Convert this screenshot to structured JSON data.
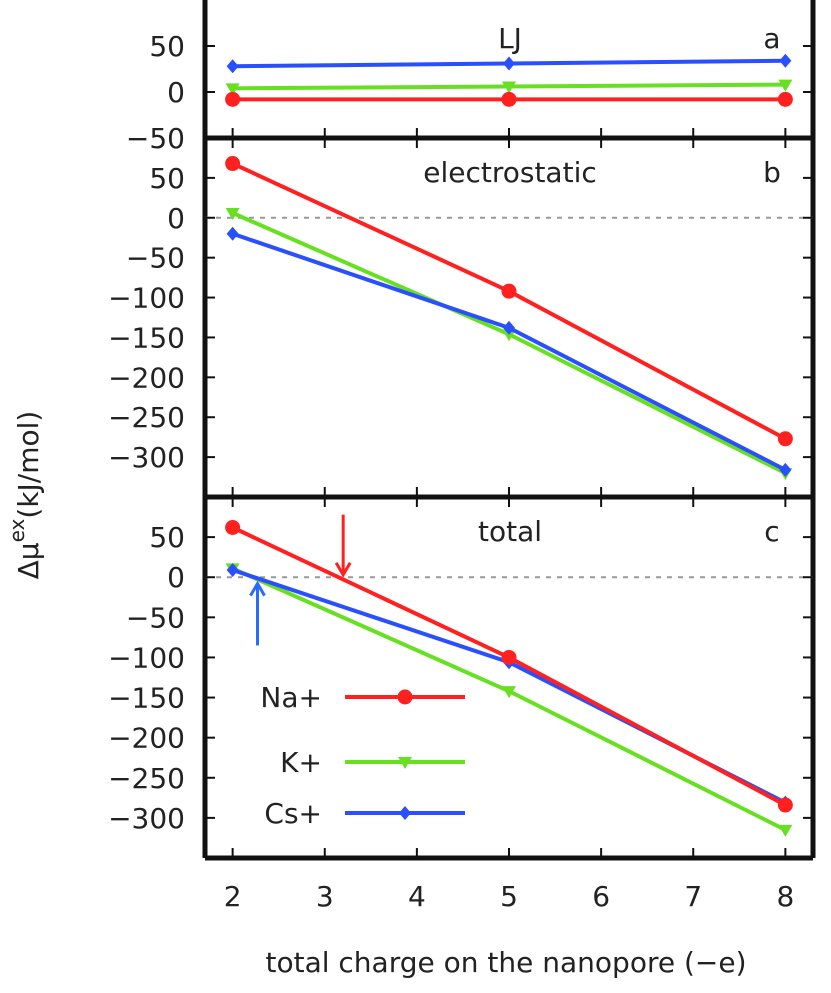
{
  "chart_data": [
    {
      "type": "line",
      "panel_id": "a",
      "title": "LJ",
      "ylim": [
        -50,
        100
      ],
      "yticks": [
        -50,
        0,
        50
      ],
      "ytick_labels": [
        "−50",
        "0",
        "50"
      ],
      "x": [
        2,
        5,
        8
      ],
      "series": [
        {
          "name": "Na+",
          "values": [
            -8,
            -8,
            -8
          ]
        },
        {
          "name": "K+",
          "values": [
            4,
            6,
            8
          ]
        },
        {
          "name": "Cs+",
          "values": [
            28,
            31,
            34
          ]
        }
      ],
      "zero_line": false
    },
    {
      "type": "line",
      "panel_id": "b",
      "title": "electrostatic",
      "ylim": [
        -350,
        100
      ],
      "yticks": [
        -300,
        -250,
        -200,
        -150,
        -100,
        -50,
        0,
        50
      ],
      "ytick_labels": [
        "−300",
        "−250",
        "−200",
        "−150",
        "−100",
        "−50",
        "0",
        "50"
      ],
      "x": [
        2,
        5,
        8
      ],
      "series": [
        {
          "name": "Na+",
          "values": [
            68,
            -92,
            -277
          ]
        },
        {
          "name": "K+",
          "values": [
            6,
            -146,
            -320
          ]
        },
        {
          "name": "Cs+",
          "values": [
            -20,
            -138,
            -316
          ]
        }
      ],
      "zero_line": true
    },
    {
      "type": "line",
      "panel_id": "c",
      "title": "total",
      "ylim": [
        -350,
        100
      ],
      "yticks": [
        -300,
        -250,
        -200,
        -150,
        -100,
        -50,
        0,
        50
      ],
      "ytick_labels": [
        "−300",
        "−250",
        "−200",
        "−150",
        "−100",
        "−50",
        "0",
        "50"
      ],
      "x": [
        2,
        5,
        8
      ],
      "series": [
        {
          "name": "Na+",
          "values": [
            62,
            -100,
            -284
          ]
        },
        {
          "name": "K+",
          "values": [
            11,
            -142,
            -315
          ]
        },
        {
          "name": "Cs+",
          "values": [
            9,
            -106,
            -281
          ]
        }
      ],
      "zero_line": true,
      "annotations": [
        {
          "type": "arrow",
          "color": "#ff2020",
          "x": 3.2,
          "y_from": 78,
          "y_to": 3,
          "direction": "down"
        },
        {
          "type": "arrow",
          "color": "#2a6bff",
          "x": 2.27,
          "y_from": -85,
          "y_to": -8,
          "direction": "up"
        }
      ]
    }
  ],
  "xaxis": {
    "label": "total charge on the nanopore (−e)",
    "xlim": [
      1.7,
      8.3
    ],
    "ticks": [
      2,
      3,
      4,
      5,
      6,
      7,
      8
    ]
  },
  "ylabel": {
    "prefix": "Δμ",
    "superscript": "ex",
    "unit": "(kJ/mol)"
  },
  "legend": {
    "location": "lower-left of panel c",
    "entries": [
      {
        "label": "Na+",
        "color": "#ff2020",
        "marker": "circle"
      },
      {
        "label": "K+",
        "color": "#66e020",
        "marker": "triangle-down"
      },
      {
        "label": "Cs+",
        "color": "#2a4fff",
        "marker": "diamond"
      }
    ]
  },
  "colors": {
    "Na+": "#ff2020",
    "K+": "#66e020",
    "Cs+": "#2a4fff",
    "zero_line": "#999999",
    "frame": "#111111"
  }
}
